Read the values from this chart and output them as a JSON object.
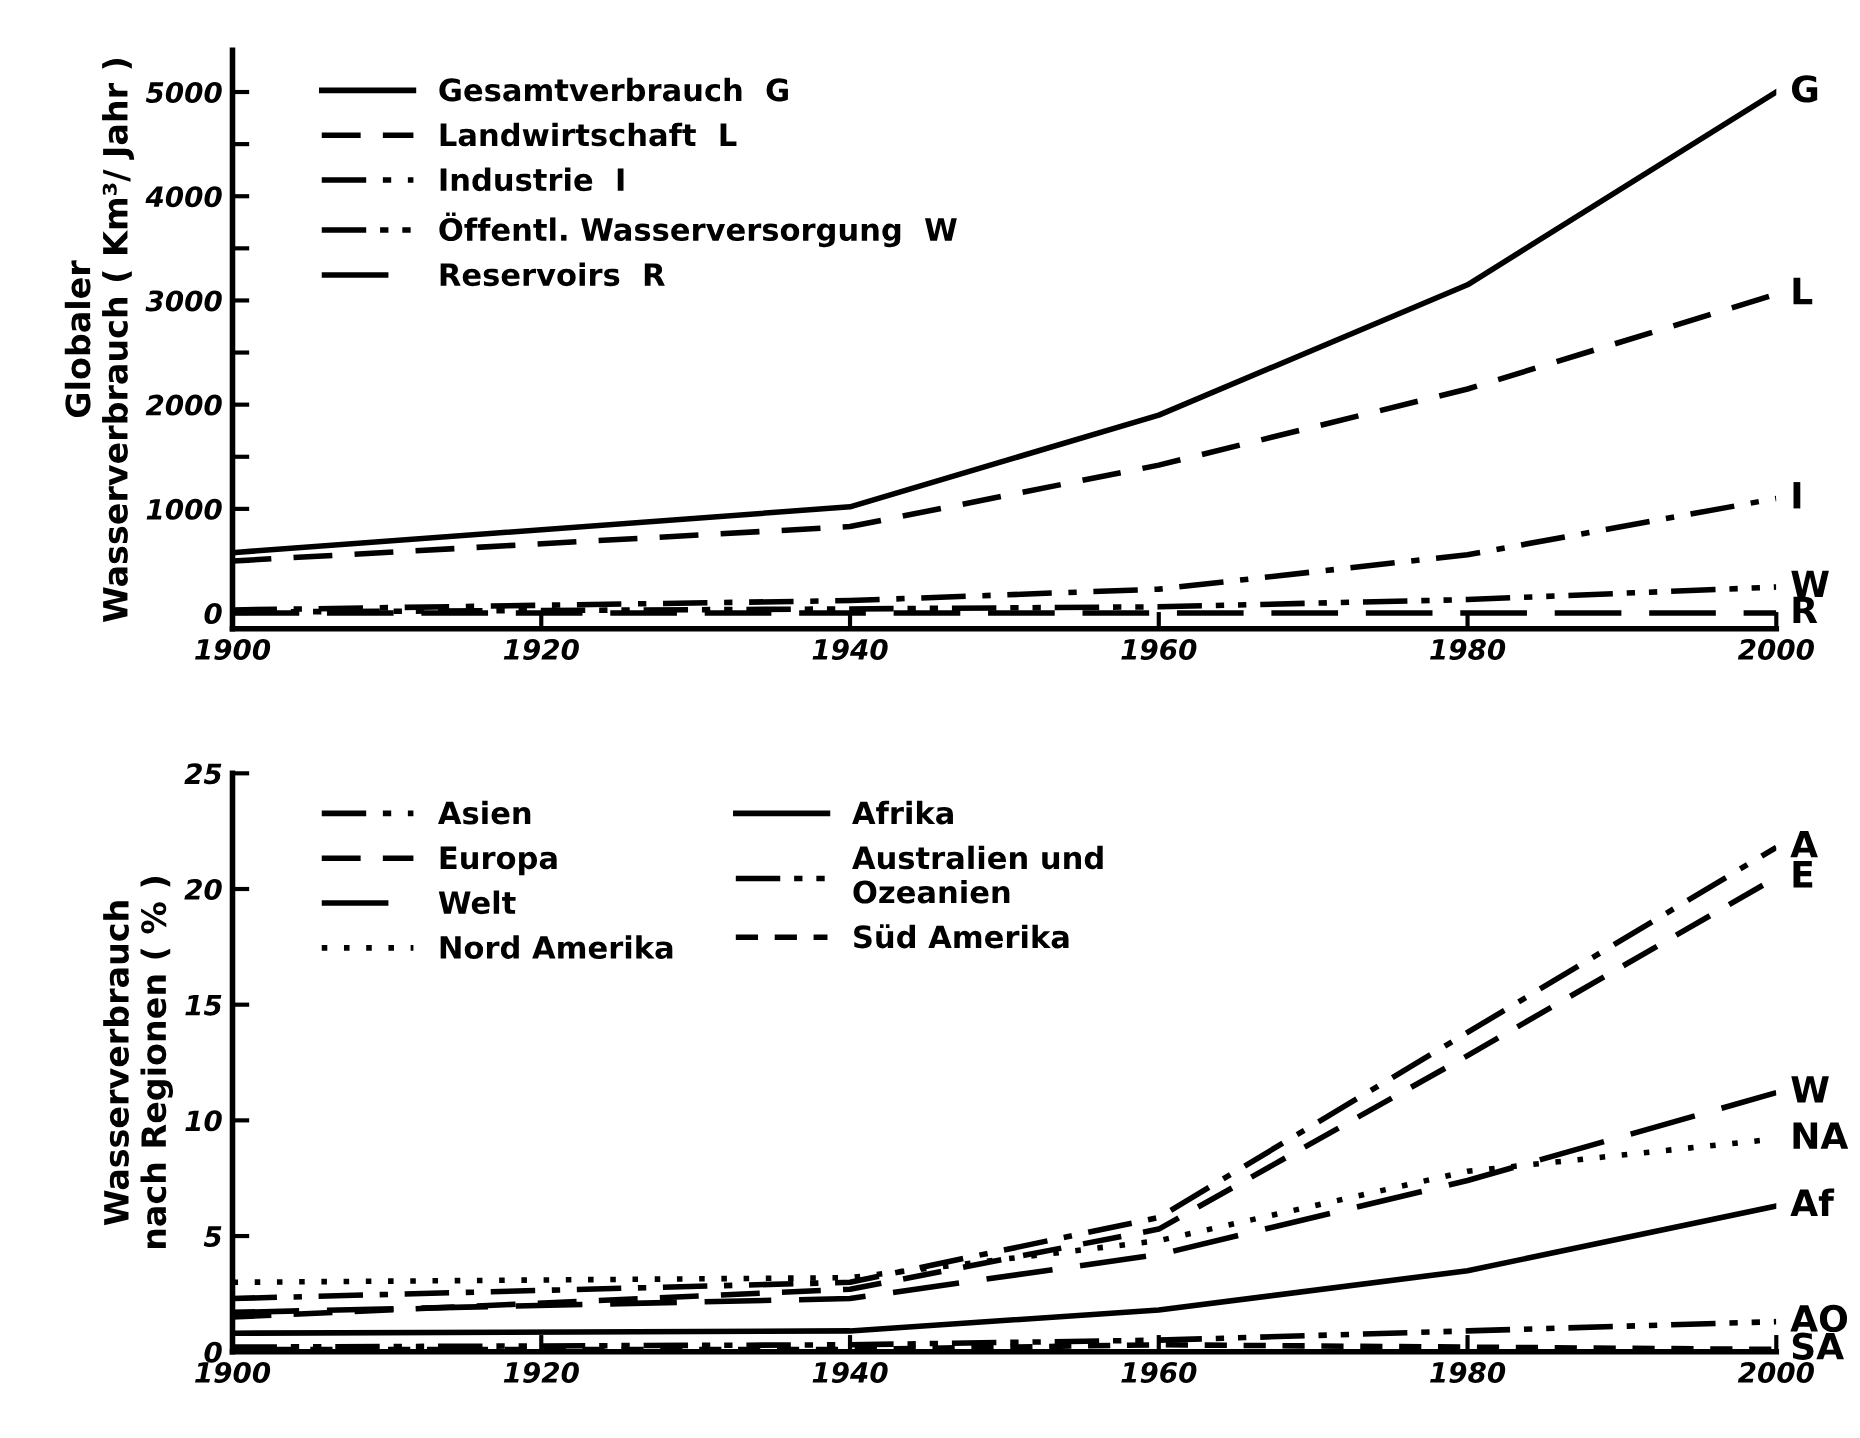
{
  "chart_data": [
    {
      "type": "line",
      "ylabel": "Globaler\nWasserverbrauch ( Km³/ Jahr )",
      "x": [
        1900,
        1940,
        1960,
        1980,
        2000
      ],
      "series": [
        {
          "name": "Gesamtverbrauch  G",
          "color": "#000000",
          "line_style": "solid",
          "values": [
            580,
            1020,
            1900,
            3150,
            5000
          ]
        },
        {
          "name": "Landwirtschaft  L",
          "color": "#000000",
          "line_style": "dashed",
          "values": [
            500,
            830,
            1420,
            2150,
            3060
          ]
        },
        {
          "name": "Industrie  I",
          "color": "#000000",
          "line_style": "dashdot",
          "values": [
            30,
            120,
            230,
            560,
            1100
          ]
        },
        {
          "name": "Öffentl. Wasserversorgung  W",
          "color": "#000000",
          "line_style": "dashdotdot",
          "values": [
            10,
            40,
            60,
            130,
            250
          ]
        },
        {
          "name": "Reservoirs  R",
          "color": "#000000",
          "line_style": "longdash",
          "values": [
            0,
            0,
            0,
            0,
            0
          ]
        }
      ],
      "annotations": [
        "G",
        "L",
        "I",
        "W",
        "R"
      ],
      "xlim": [
        1900,
        2000
      ],
      "xticks": [
        1900,
        1920,
        1940,
        1960,
        1980,
        2000
      ],
      "ylim": [
        -150,
        5400
      ],
      "yticks": [
        0,
        {
          "value": 500,
          "label": null
        },
        1000,
        {
          "value": 1500,
          "label": null
        },
        2000,
        {
          "value": 2500,
          "label": null
        },
        3000,
        {
          "value": 3500,
          "label": null
        },
        4000,
        {
          "value": 4500,
          "label": null
        },
        5000
      ],
      "grid": false,
      "legend": "top left",
      "marker": "none"
    },
    {
      "type": "line",
      "ylabel": "Wasserverbrauch\nnach Regionen ( % )",
      "x": [
        1900,
        1940,
        1960,
        1980,
        2000
      ],
      "series": [
        {
          "name": "Asien",
          "color": "#000000",
          "line_style": "dashdot",
          "values": [
            2.3,
            3.0,
            5.8,
            13.8,
            21.8
          ]
        },
        {
          "name": "Europa",
          "color": "#000000",
          "line_style": "dashed",
          "values": [
            1.5,
            2.7,
            5.3,
            12.8,
            20.5
          ]
        },
        {
          "name": "Welt",
          "color": "#000000",
          "line_style": "longdash",
          "values": [
            1.7,
            2.3,
            4.2,
            7.4,
            11.2
          ]
        },
        {
          "name": "Nord Amerika",
          "color": "#000000",
          "line_style": "dotted",
          "values": [
            3.0,
            3.2,
            4.8,
            7.8,
            9.2
          ]
        },
        {
          "name": "Afrika",
          "color": "#000000",
          "line_style": "solid",
          "values": [
            0.8,
            0.9,
            1.8,
            3.5,
            6.3
          ]
        },
        {
          "name": "Australien und\nOzeanien",
          "color": "#000000",
          "line_style": "dashdotdot",
          "values": [
            0.2,
            0.3,
            0.5,
            0.9,
            1.3
          ]
        },
        {
          "name": "Süd Amerika",
          "color": "#000000",
          "line_style": "shortdash",
          "values": [
            0.1,
            0.1,
            0.3,
            0.2,
            0.1
          ]
        }
      ],
      "annotations": [
        "A",
        "E",
        "W",
        "NA",
        "Af",
        "AO",
        "SA"
      ],
      "xlim": [
        1900,
        2000
      ],
      "xticks": [
        1900,
        1920,
        1940,
        1960,
        1980,
        2000
      ],
      "ylim": [
        0,
        25
      ],
      "yticks": [
        0,
        5,
        10,
        15,
        20,
        25
      ],
      "grid": false,
      "legend": "top left",
      "marker": "none"
    }
  ]
}
